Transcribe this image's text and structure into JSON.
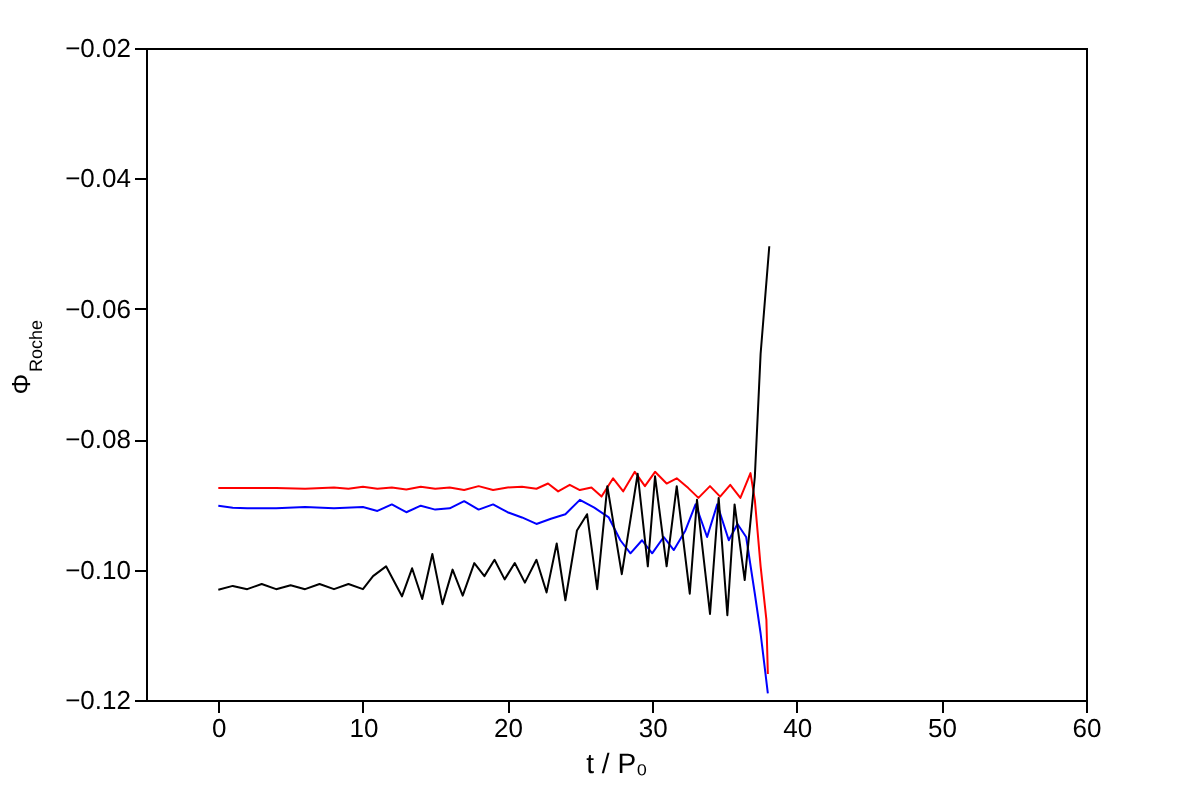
{
  "chart_data": {
    "type": "line",
    "xlabel": "t / P₀",
    "ylabel": "Φ$_{Roche}$",
    "xlim": [
      -5,
      60
    ],
    "xticks": [
      0,
      10,
      20,
      30,
      40,
      50,
      60
    ],
    "ylim": [
      -0.12,
      -0.02
    ],
    "yticks": [
      -0.12,
      {
        "value": -0.1,
        "label": "−0.10"
      },
      -0.08,
      -0.06,
      -0.04,
      -0.02
    ],
    "grid": false,
    "legend": false,
    "series": [
      {
        "color": "#ff0000",
        "x": [
          0,
          2,
          4,
          6,
          8,
          9,
          10,
          11,
          12,
          13,
          14,
          15,
          16,
          17,
          18,
          19,
          20,
          21,
          22,
          22.8,
          23.5,
          24.3,
          25,
          25.8,
          26.5,
          27.3,
          28,
          28.8,
          29.5,
          30.2,
          31,
          31.7,
          32.5,
          33.2,
          34,
          34.7,
          35.4,
          36.1,
          36.8,
          37.1,
          37.5,
          37.9,
          38
        ],
        "values": [
          -0.0875,
          -0.0875,
          -0.0875,
          -0.0876,
          -0.0874,
          -0.0876,
          -0.0873,
          -0.0876,
          -0.0874,
          -0.0877,
          -0.0873,
          -0.0876,
          -0.0874,
          -0.0878,
          -0.0872,
          -0.0878,
          -0.0874,
          -0.0873,
          -0.0876,
          -0.0868,
          -0.088,
          -0.087,
          -0.0878,
          -0.0874,
          -0.0888,
          -0.086,
          -0.088,
          -0.085,
          -0.0872,
          -0.085,
          -0.0868,
          -0.086,
          -0.0875,
          -0.089,
          -0.0872,
          -0.0888,
          -0.087,
          -0.089,
          -0.0852,
          -0.0893,
          -0.0995,
          -0.1077,
          -0.116
        ]
      },
      {
        "color": "#0000ff",
        "x": [
          0,
          1,
          2,
          4,
          6,
          8,
          10,
          11,
          12,
          13,
          14,
          15,
          16,
          17,
          18,
          19,
          20,
          21,
          22,
          23,
          24,
          25,
          26,
          27,
          27.8,
          28.5,
          29.3,
          30,
          30.8,
          31.5,
          32.3,
          33,
          33.8,
          34.5,
          35.3,
          35.9,
          36.5,
          37.1,
          37.5,
          38
        ],
        "values": [
          -0.0902,
          -0.0905,
          -0.0906,
          -0.0906,
          -0.0904,
          -0.0906,
          -0.0904,
          -0.091,
          -0.09,
          -0.0912,
          -0.0902,
          -0.0908,
          -0.0906,
          -0.0895,
          -0.0908,
          -0.09,
          -0.0912,
          -0.092,
          -0.093,
          -0.0922,
          -0.0915,
          -0.0893,
          -0.0905,
          -0.092,
          -0.0955,
          -0.0975,
          -0.0955,
          -0.0975,
          -0.095,
          -0.097,
          -0.094,
          -0.09,
          -0.095,
          -0.09,
          -0.0955,
          -0.093,
          -0.095,
          -0.1037,
          -0.1098,
          -0.119
        ]
      },
      {
        "color": "#000000",
        "x": [
          0,
          1,
          2,
          3,
          4,
          5,
          6,
          7,
          8,
          9,
          10,
          10.7,
          11.6,
          12.7,
          13.4,
          14.1,
          14.8,
          15.5,
          16.2,
          16.9,
          17.7,
          18.4,
          19.1,
          19.8,
          20.5,
          21.2,
          22,
          22.7,
          23.4,
          24,
          24.8,
          25.5,
          26.2,
          26.9,
          27.9,
          29,
          29.7,
          30.2,
          31,
          31.7,
          32.6,
          33.1,
          34,
          34.6,
          35.2,
          35.7,
          36.4,
          37.1,
          37.5,
          38.1
        ],
        "values": [
          -0.1031,
          -0.1025,
          -0.103,
          -0.1022,
          -0.103,
          -0.1024,
          -0.103,
          -0.1022,
          -0.103,
          -0.1022,
          -0.103,
          -0.101,
          -0.0995,
          -0.1041,
          -0.0998,
          -0.1045,
          -0.0976,
          -0.1053,
          -0.1,
          -0.104,
          -0.099,
          -0.101,
          -0.0985,
          -0.1015,
          -0.099,
          -0.102,
          -0.0985,
          -0.1035,
          -0.096,
          -0.1047,
          -0.094,
          -0.0915,
          -0.103,
          -0.0872,
          -0.1007,
          -0.0853,
          -0.0995,
          -0.0857,
          -0.0995,
          -0.0872,
          -0.1037,
          -0.0893,
          -0.1068,
          -0.089,
          -0.107,
          -0.09,
          -0.1016,
          -0.0858,
          -0.0669,
          -0.0504
        ]
      }
    ]
  }
}
